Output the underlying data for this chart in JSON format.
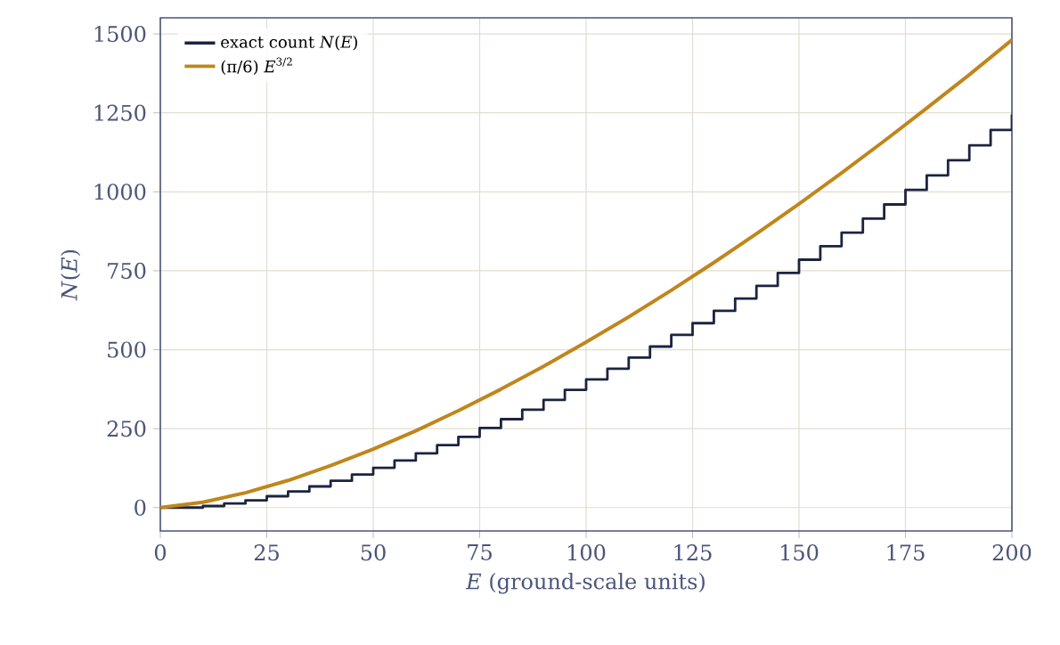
{
  "chart_data": {
    "type": "step",
    "xlabel": "*E* (ground-scale units)",
    "ylabel": "*N*(*E*)",
    "x": [
      0,
      10,
      20,
      30,
      40,
      50,
      60,
      70,
      80,
      90,
      100,
      110,
      120,
      130,
      140,
      150,
      160,
      170,
      180,
      190,
      200
    ],
    "series": [
      {
        "name": "exact count *N*(*E*)",
        "color": "#1b2440",
        "x": [
          0,
          5,
          10,
          15,
          20,
          25,
          30,
          35,
          40,
          45,
          50,
          55,
          60,
          65,
          70,
          75,
          80,
          85,
          90,
          95,
          100,
          105,
          110,
          115,
          120,
          125,
          130,
          135,
          140,
          145,
          150,
          155,
          160,
          165,
          170,
          175,
          180,
          185,
          190,
          195,
          200
        ],
        "values": [
          0,
          0,
          5,
          13,
          23,
          36,
          51,
          67,
          85,
          105,
          126,
          149,
          172,
          198,
          224,
          252,
          280,
          310,
          341,
          373,
          406,
          440,
          475,
          510,
          547,
          584,
          623,
          662,
          702,
          743,
          785,
          828,
          871,
          915,
          960,
          1006,
          1052,
          1100,
          1147,
          1196,
          1245
        ]
      },
      {
        "name": "(π/6) *E*$^{3/2}$",
        "type": "line",
        "color": "#c0861c",
        "values": [
          0,
          17,
          47,
          86,
          133,
          185,
          243,
          307,
          375,
          447,
          524,
          604,
          688,
          776,
          867,
          962,
          1060,
          1161,
          1265,
          1371,
          1481
        ]
      }
    ],
    "xlim": [
      0,
      200
    ],
    "ylim": [
      -74,
      1551
    ],
    "xticks": [
      0,
      25,
      50,
      75,
      100,
      125,
      150,
      175,
      200
    ],
    "yticks": [
      0,
      250,
      500,
      750,
      1000,
      1250,
      1500
    ],
    "grid": true,
    "legend": "top left"
  }
}
